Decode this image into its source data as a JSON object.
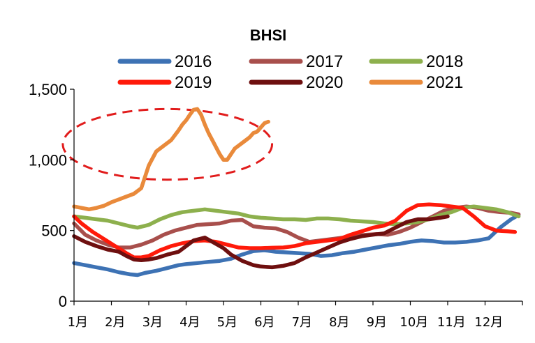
{
  "chart_data": {
    "type": "line",
    "title": "BHSI",
    "xlabel": "",
    "ylabel": "",
    "ylim": [
      0,
      1500
    ],
    "yticks": [
      0,
      500,
      1000,
      1500
    ],
    "ytick_labels": [
      "0",
      "500",
      "1,000",
      "1,500"
    ],
    "xlim": [
      0,
      12
    ],
    "categories": [
      "1月",
      "2月",
      "3月",
      "4月",
      "5月",
      "6月",
      "7月",
      "8月",
      "9月",
      "10月",
      "11月",
      "12月"
    ],
    "legend_position": "top",
    "grid": false,
    "annotation": {
      "type": "dashed-ellipse",
      "color": "#e11c1c",
      "x_center": 2.5,
      "y_center": 1110,
      "x_radius": 2.8,
      "y_radius": 250
    },
    "series": [
      {
        "name": "2016",
        "color": "#3d72b4",
        "x": [
          0,
          0.3,
          0.6,
          0.9,
          1.2,
          1.5,
          1.7,
          1.9,
          2.2,
          2.5,
          2.8,
          3.0,
          3.3,
          3.6,
          3.9,
          4.2,
          4.5,
          4.8,
          5.1,
          5.4,
          5.7,
          6.0,
          6.3,
          6.6,
          6.9,
          7.2,
          7.5,
          7.8,
          8.1,
          8.4,
          8.7,
          9.0,
          9.3,
          9.6,
          9.9,
          10.2,
          10.5,
          10.8,
          11.1,
          11.4,
          11.7,
          11.9
        ],
        "y": [
          270,
          255,
          240,
          225,
          205,
          190,
          185,
          200,
          215,
          235,
          255,
          262,
          270,
          278,
          285,
          300,
          330,
          355,
          360,
          350,
          345,
          340,
          335,
          320,
          325,
          340,
          350,
          365,
          380,
          395,
          405,
          420,
          430,
          425,
          415,
          415,
          420,
          430,
          445,
          520,
          580,
          610
        ]
      },
      {
        "name": "2017",
        "color": "#a84f4c",
        "x": [
          0,
          0.3,
          0.6,
          0.9,
          1.2,
          1.5,
          1.8,
          2.1,
          2.4,
          2.7,
          3.0,
          3.3,
          3.6,
          3.9,
          4.2,
          4.5,
          4.8,
          5.1,
          5.4,
          5.7,
          6.0,
          6.3,
          6.6,
          6.9,
          7.2,
          7.5,
          7.8,
          8.1,
          8.4,
          8.7,
          9.0,
          9.3,
          9.6,
          9.9,
          10.2,
          10.5,
          10.8,
          11.1,
          11.4,
          11.7,
          11.9
        ],
        "y": [
          550,
          470,
          430,
          400,
          380,
          380,
          400,
          430,
          470,
          500,
          520,
          540,
          545,
          550,
          570,
          575,
          530,
          520,
          515,
          490,
          450,
          420,
          430,
          440,
          450,
          460,
          470,
          475,
          470,
          490,
          520,
          560,
          600,
          640,
          660,
          670,
          660,
          640,
          630,
          625,
          615
        ]
      },
      {
        "name": "2018",
        "color": "#8db04d",
        "x": [
          0,
          0.3,
          0.6,
          0.9,
          1.2,
          1.5,
          1.7,
          2.0,
          2.3,
          2.6,
          2.9,
          3.2,
          3.5,
          3.8,
          4.1,
          4.4,
          4.7,
          5.0,
          5.3,
          5.6,
          5.9,
          6.2,
          6.5,
          6.8,
          7.1,
          7.4,
          7.7,
          8.0,
          8.3,
          8.6,
          8.9,
          9.2,
          9.5,
          9.8,
          10.1,
          10.4,
          10.7,
          11.0,
          11.3,
          11.6,
          11.9
        ],
        "y": [
          600,
          590,
          580,
          570,
          550,
          530,
          520,
          540,
          580,
          610,
          630,
          640,
          650,
          640,
          630,
          620,
          600,
          590,
          585,
          580,
          580,
          575,
          585,
          585,
          580,
          570,
          565,
          560,
          550,
          545,
          550,
          560,
          580,
          610,
          630,
          660,
          670,
          660,
          650,
          630,
          600
        ]
      },
      {
        "name": "2019",
        "color": "#ff1a0a",
        "x": [
          0,
          0.2,
          0.5,
          0.8,
          1.1,
          1.4,
          1.6,
          1.8,
          2.0,
          2.3,
          2.6,
          2.9,
          3.2,
          3.5,
          3.8,
          4.1,
          4.4,
          4.7,
          5.0,
          5.3,
          5.6,
          5.9,
          6.2,
          6.5,
          6.8,
          7.1,
          7.4,
          7.7,
          8.0,
          8.3,
          8.6,
          8.9,
          9.2,
          9.5,
          9.8,
          10.1,
          10.4,
          10.7,
          11.0,
          11.3,
          11.6,
          11.8
        ],
        "y": [
          600,
          550,
          490,
          440,
          390,
          340,
          310,
          310,
          320,
          360,
          390,
          410,
          425,
          430,
          420,
          400,
          380,
          375,
          375,
          378,
          380,
          390,
          410,
          420,
          430,
          440,
          470,
          495,
          520,
          535,
          570,
          640,
          680,
          685,
          680,
          670,
          660,
          600,
          530,
          500,
          495,
          490
        ]
      },
      {
        "name": "2020",
        "color": "#6e0f0f",
        "x": [
          0,
          0.3,
          0.6,
          0.9,
          1.2,
          1.4,
          1.6,
          1.8,
          2.0,
          2.2,
          2.5,
          2.8,
          3.0,
          3.2,
          3.5,
          3.7,
          4.0,
          4.2,
          4.5,
          4.8,
          5.0,
          5.3,
          5.6,
          5.9,
          6.2,
          6.5,
          6.8,
          7.1,
          7.4,
          7.7,
          8.0,
          8.3,
          8.6,
          8.9,
          9.2,
          9.5,
          9.8,
          10.0
        ],
        "y": [
          460,
          420,
          390,
          365,
          350,
          320,
          295,
          290,
          295,
          305,
          330,
          350,
          390,
          430,
          450,
          420,
          375,
          330,
          285,
          255,
          245,
          240,
          250,
          270,
          310,
          345,
          380,
          415,
          440,
          460,
          470,
          480,
          520,
          560,
          580,
          580,
          590,
          600
        ]
      },
      {
        "name": "2021",
        "color": "#e98a3b",
        "x": [
          0,
          0.2,
          0.4,
          0.6,
          0.8,
          1.0,
          1.2,
          1.4,
          1.6,
          1.8,
          2.0,
          2.2,
          2.4,
          2.6,
          2.8,
          2.9,
          3.0,
          3.1,
          3.2,
          3.3,
          3.4,
          3.5,
          3.6,
          3.7,
          3.8,
          3.9,
          4.0,
          4.1,
          4.2,
          4.3,
          4.4,
          4.5,
          4.6,
          4.7,
          4.8,
          4.9,
          5.0,
          5.1,
          5.2
        ],
        "y": [
          670,
          660,
          650,
          660,
          675,
          700,
          720,
          740,
          760,
          800,
          960,
          1060,
          1100,
          1140,
          1210,
          1250,
          1280,
          1320,
          1355,
          1360,
          1320,
          1250,
          1190,
          1140,
          1090,
          1040,
          1000,
          1000,
          1040,
          1080,
          1100,
          1120,
          1140,
          1160,
          1190,
          1200,
          1230,
          1260,
          1270
        ]
      }
    ]
  }
}
